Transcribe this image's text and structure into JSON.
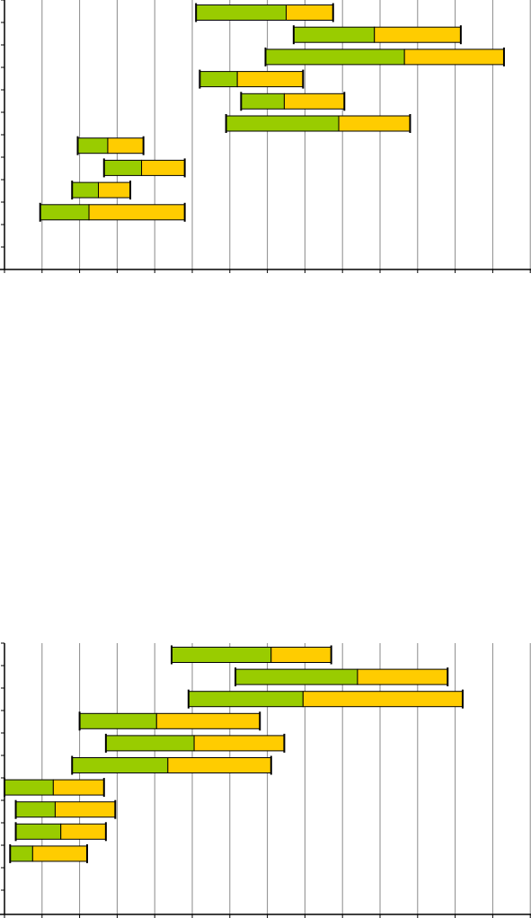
{
  "chart_data": [
    {
      "type": "bar",
      "orientation": "horizontal-stacked-floating",
      "x_range": [
        0,
        14
      ],
      "grid": true,
      "legend": "none",
      "colors": {
        "segment_a": "#99cc00",
        "segment_b": "#ffcc00"
      },
      "rows": [
        {
          "start": 5.1,
          "a": 2.4,
          "b": 1.25
        },
        {
          "start": 7.7,
          "a": 2.15,
          "b": 2.3
        },
        {
          "start": 6.95,
          "a": 3.7,
          "b": 2.65
        },
        {
          "start": 5.2,
          "a": 1.0,
          "b": 1.75
        },
        {
          "start": 6.3,
          "a": 1.15,
          "b": 1.6
        },
        {
          "start": 5.9,
          "a": 3.0,
          "b": 1.9
        },
        {
          "start": 1.95,
          "a": 0.8,
          "b": 0.95
        },
        {
          "start": 2.65,
          "a": 1.0,
          "b": 1.15
        },
        {
          "start": 1.8,
          "a": 0.7,
          "b": 0.85
        },
        {
          "start": 0.95,
          "a": 1.3,
          "b": 2.55
        }
      ]
    },
    {
      "type": "bar",
      "orientation": "horizontal-stacked-floating",
      "x_range": [
        0,
        14
      ],
      "grid": true,
      "legend": "none",
      "colors": {
        "segment_a": "#99cc00",
        "segment_b": "#ffcc00"
      },
      "rows": [
        {
          "start": 4.45,
          "a": 2.65,
          "b": 1.6
        },
        {
          "start": 6.15,
          "a": 3.25,
          "b": 2.4
        },
        {
          "start": 4.9,
          "a": 3.05,
          "b": 4.25
        },
        {
          "start": 2.0,
          "a": 2.05,
          "b": 2.75
        },
        {
          "start": 2.7,
          "a": 2.35,
          "b": 2.4
        },
        {
          "start": 1.8,
          "a": 2.55,
          "b": 2.75
        },
        {
          "start": 0.0,
          "a": 1.3,
          "b": 1.35
        },
        {
          "start": 0.3,
          "a": 1.05,
          "b": 1.6
        },
        {
          "start": 0.3,
          "a": 1.2,
          "b": 1.2
        },
        {
          "start": 0.15,
          "a": 0.6,
          "b": 1.45
        }
      ]
    }
  ]
}
